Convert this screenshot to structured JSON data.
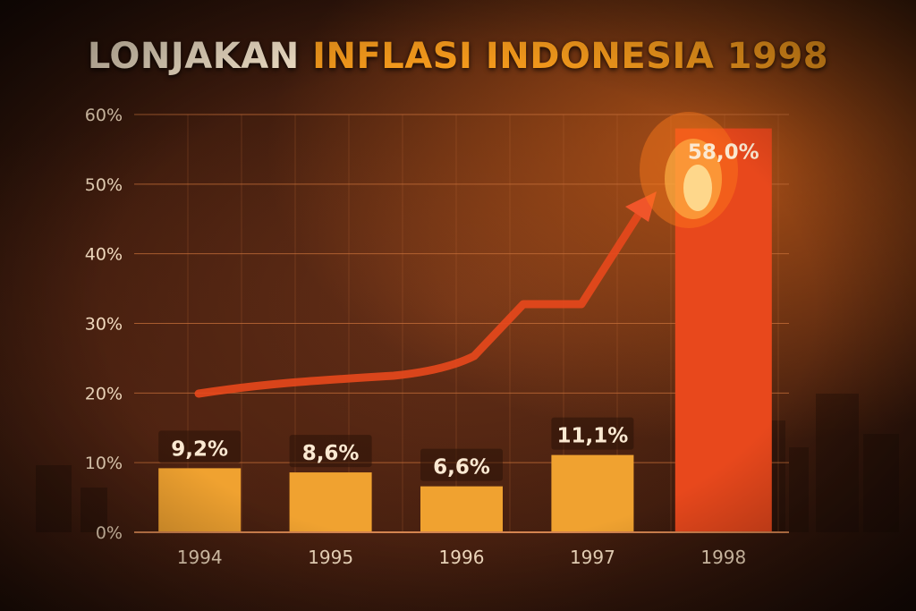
{
  "title": {
    "part1": "LONJAKAN ",
    "part2": "INFLASI INDONESIA 1998"
  },
  "colors": {
    "bar": "#f0a230",
    "bar_highlight": "#e8481c",
    "grid": "#c8703a",
    "text": "#f3dcc0",
    "arrow": "#e8481c"
  },
  "chart_data": {
    "type": "bar",
    "categories": [
      "1994",
      "1995",
      "1996",
      "1997",
      "1998"
    ],
    "values": [
      9.2,
      8.6,
      6.6,
      11.1,
      58.0
    ],
    "data_labels": [
      "9,2%",
      "8,6%",
      "6,6%",
      "11,1%",
      "58,0%"
    ],
    "y_ticks": [
      "0%",
      "10%",
      "20%",
      "30%",
      "40%",
      "50%",
      "60%"
    ],
    "ylim": [
      0,
      60
    ],
    "grid": true
  }
}
